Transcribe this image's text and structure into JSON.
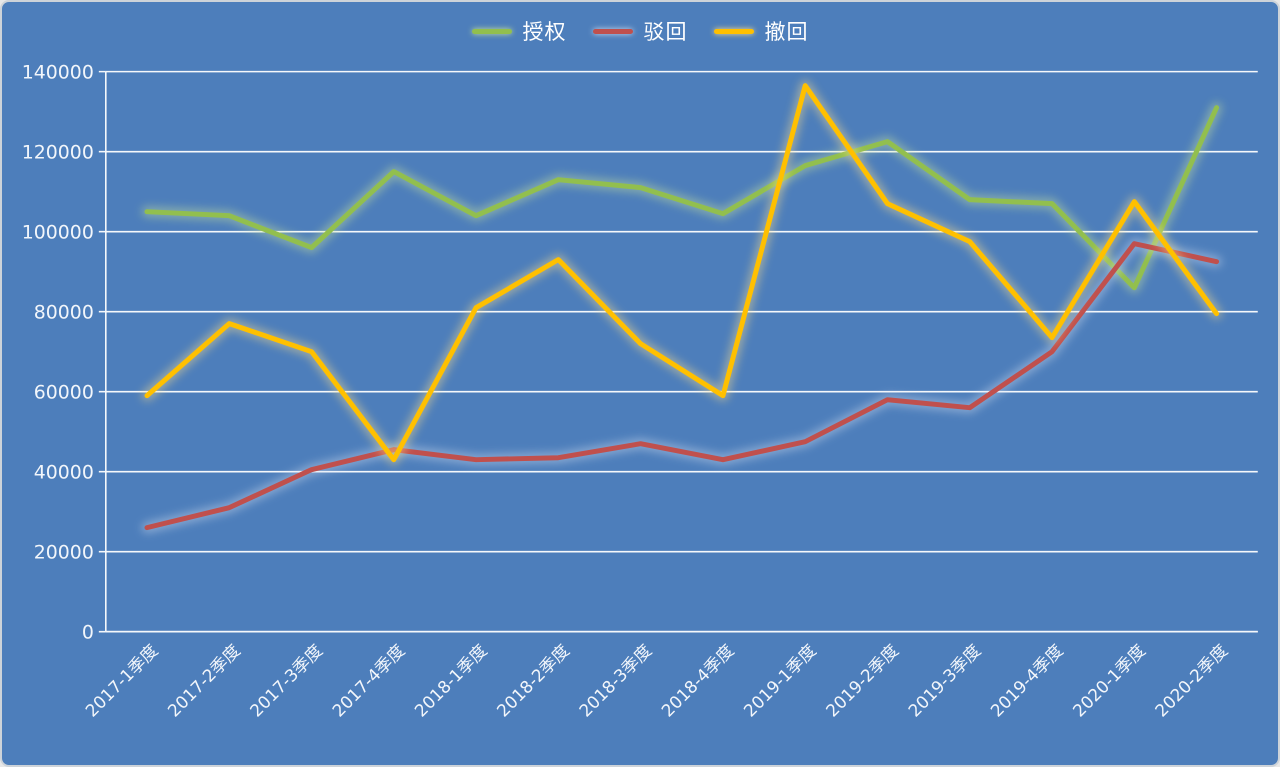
{
  "window": {
    "background_color": "#4d7ebb",
    "border_color": "#cdd3d9",
    "grid_color": "#f5f8fb",
    "text_color": "#ffffff"
  },
  "chart_data": {
    "type": "line",
    "title": "",
    "legend_position": "top",
    "grid": true,
    "ylim": [
      0,
      140000
    ],
    "yticks": [
      0,
      20000,
      40000,
      60000,
      80000,
      100000,
      120000,
      140000
    ],
    "ytick_labels": [
      "0",
      "20000",
      "40000",
      "60000",
      "80000",
      "100000",
      "120000",
      "140000"
    ],
    "categories": [
      "2017-1季度",
      "2017-2季度",
      "2017-3季度",
      "2017-4季度",
      "2018-1季度",
      "2018-2季度",
      "2018-3季度",
      "2018-4季度",
      "2019-1季度",
      "2019-2季度",
      "2019-3季度",
      "2019-4季度",
      "2020-1季度",
      "2020-2季度"
    ],
    "series": [
      {
        "name": "授权",
        "color": "#92bf4e",
        "glow_color": "#c9e39b",
        "values": [
          105000,
          104000,
          96000,
          115000,
          104000,
          113000,
          111000,
          104500,
          116500,
          122500,
          108000,
          107000,
          86000,
          131000
        ]
      },
      {
        "name": "驳回",
        "color": "#c0504d",
        "glow_color": "#cfdcee",
        "values": [
          26000,
          31000,
          40500,
          45500,
          43000,
          43500,
          47000,
          43000,
          47500,
          58000,
          56000,
          70000,
          97000,
          92500
        ]
      },
      {
        "name": "撤回",
        "color": "#ffc000",
        "glow_color": "#ffe089",
        "values": [
          59000,
          77000,
          70000,
          43000,
          81000,
          93000,
          72000,
          59000,
          136500,
          107000,
          97500,
          73500,
          107500,
          79500
        ]
      }
    ]
  }
}
